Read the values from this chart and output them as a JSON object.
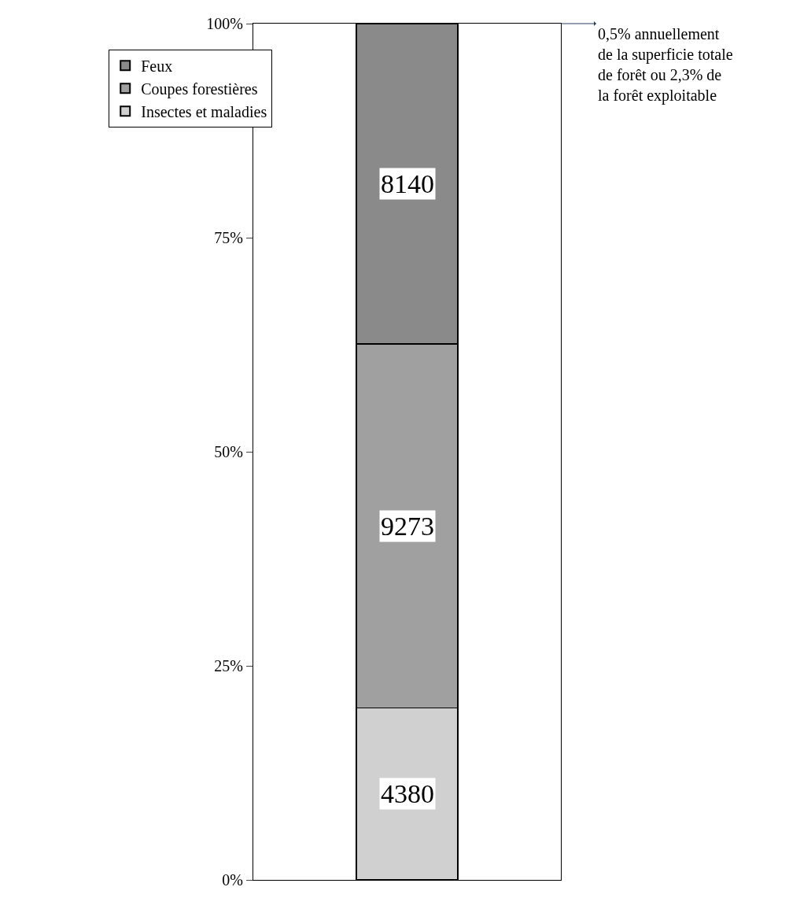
{
  "chart_data": {
    "type": "bar",
    "stacked": true,
    "categories": [
      null
    ],
    "series": [
      {
        "name": "Insectes et maladies",
        "color": "#d0d0d0",
        "values": [
          20.1
        ]
      },
      {
        "name": "Coupes forestières",
        "color": "#a0a0a0",
        "values": [
          42.5
        ]
      },
      {
        "name": "Feux",
        "color": "#8a8a8a",
        "values": [
          37.4
        ]
      }
    ],
    "ylim": [
      0,
      100
    ],
    "yticks": [
      {
        "value": 0,
        "label": "0%"
      },
      {
        "value": 25,
        "label": "25%"
      },
      {
        "value": 50,
        "label": "50%"
      },
      {
        "value": 75,
        "label": "75%"
      },
      {
        "value": 100,
        "label": "100%"
      }
    ],
    "legend": "top left",
    "tick_labels": "y",
    "annotations": [
      "4380",
      "9273",
      "8140",
      "0,5% annuellement\nde la superficie totale\nde forêt ou 2,3% de\nla forêt exploitable"
    ]
  }
}
